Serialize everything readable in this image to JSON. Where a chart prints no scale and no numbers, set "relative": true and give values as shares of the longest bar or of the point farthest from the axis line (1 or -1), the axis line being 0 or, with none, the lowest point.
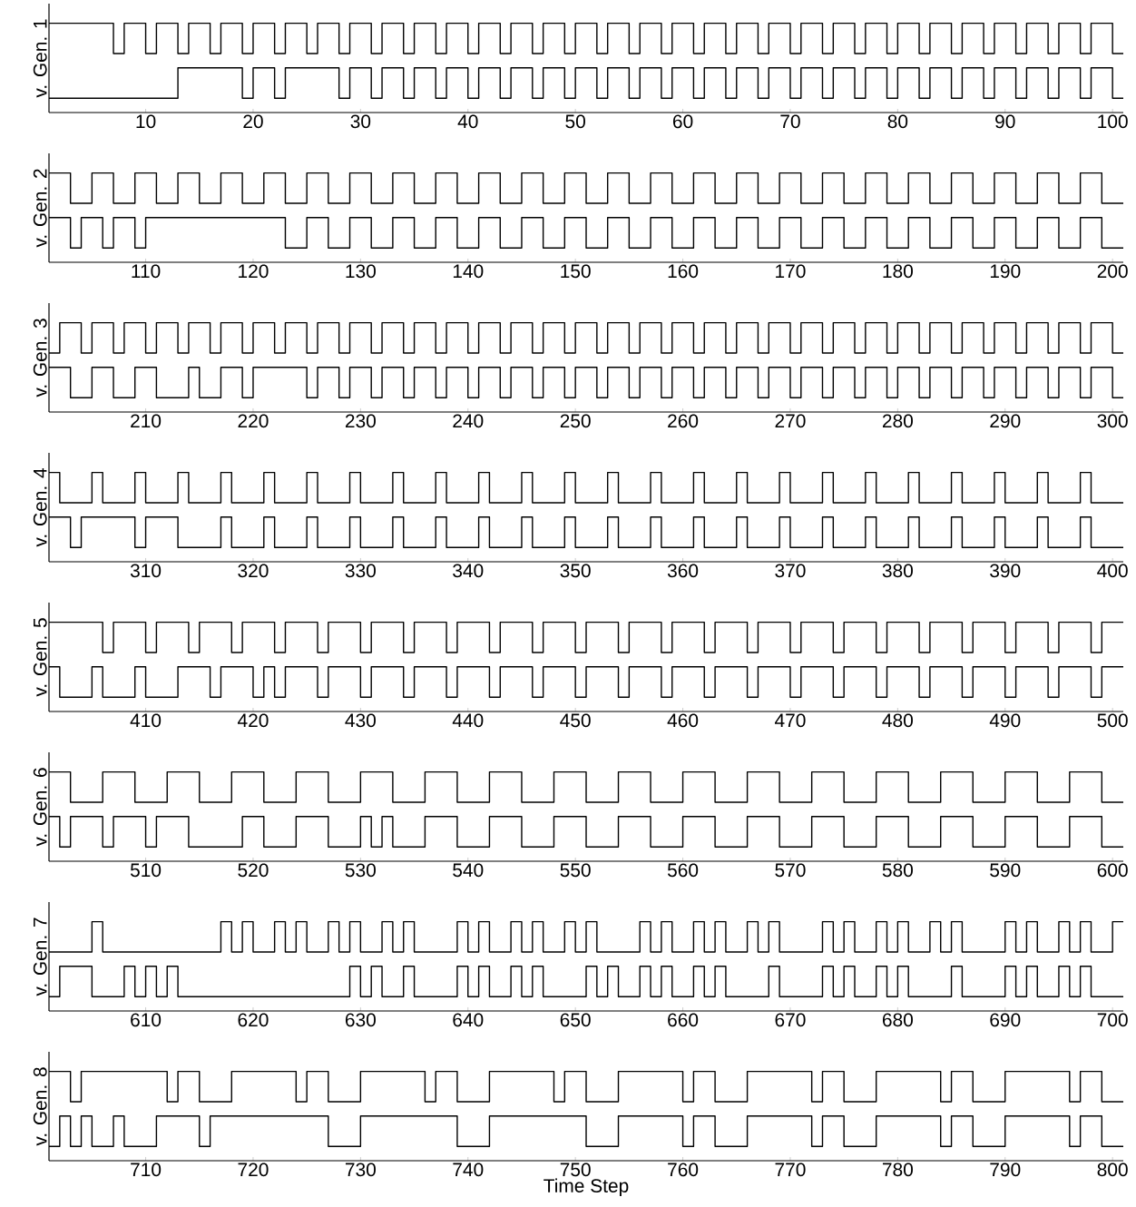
{
  "chart_data": [
    {
      "type": "step",
      "relative": true,
      "ylabel": "v. Gen. 1",
      "xlim": [
        1,
        101
      ],
      "xticks": [
        10,
        20,
        30,
        40,
        50,
        60,
        70,
        80,
        90,
        100
      ],
      "series": [
        {
          "color": "#000000",
          "x": [
            1,
            7,
            8,
            10,
            11,
            13,
            14,
            16,
            17,
            19,
            20,
            22,
            23,
            25,
            26,
            28,
            29,
            31,
            32,
            34,
            35,
            37,
            38,
            40,
            41,
            43,
            44,
            46,
            47,
            49,
            50,
            52,
            53,
            55,
            56,
            58,
            59,
            61,
            62,
            64,
            65,
            67,
            68,
            70,
            71,
            73,
            74,
            76,
            77,
            79,
            80,
            82,
            83,
            85,
            86,
            88,
            89,
            91,
            92,
            94,
            95,
            97,
            98,
            100,
            101
          ],
          "values": [
            1,
            0.66,
            1,
            0.66,
            1,
            0.66,
            1,
            0.66,
            1,
            0.66,
            1,
            0.66,
            1,
            0.66,
            1,
            0.66,
            1,
            0.66,
            1,
            0.66,
            1,
            0.66,
            1,
            0.66,
            1,
            0.66,
            1,
            0.66,
            1,
            0.66,
            1,
            0.66,
            1,
            0.66,
            1,
            0.66,
            1,
            0.66,
            1,
            0.66,
            1,
            0.66,
            1,
            0.66,
            1,
            0.66,
            1,
            0.66,
            1,
            0.66,
            1,
            0.66,
            1,
            0.66,
            1,
            0.66,
            1,
            0.66,
            1,
            0.66,
            1,
            0.66,
            1,
            0.66,
            0.66
          ]
        },
        {
          "color": "#000000",
          "x": [
            1,
            13,
            19,
            20,
            22,
            23,
            28,
            29,
            31,
            32,
            34,
            35,
            37,
            38,
            40,
            41,
            43,
            44,
            46,
            47,
            49,
            50,
            52,
            53,
            55,
            56,
            58,
            59,
            61,
            62,
            64,
            65,
            67,
            68,
            70,
            71,
            73,
            74,
            76,
            77,
            79,
            80,
            82,
            83,
            85,
            86,
            88,
            89,
            91,
            92,
            94,
            95,
            97,
            98,
            100,
            101
          ],
          "values": [
            0.16,
            0.5,
            0.16,
            0.5,
            0.16,
            0.5,
            0.16,
            0.5,
            0.16,
            0.5,
            0.16,
            0.5,
            0.16,
            0.5,
            0.16,
            0.5,
            0.16,
            0.5,
            0.16,
            0.5,
            0.16,
            0.5,
            0.16,
            0.5,
            0.16,
            0.5,
            0.16,
            0.5,
            0.16,
            0.5,
            0.16,
            0.5,
            0.16,
            0.5,
            0.16,
            0.5,
            0.16,
            0.5,
            0.16,
            0.5,
            0.16,
            0.5,
            0.16,
            0.5,
            0.16,
            0.5,
            0.16,
            0.5,
            0.16,
            0.5,
            0.16,
            0.5,
            0.16,
            0.5,
            0.16,
            0.16
          ]
        }
      ]
    },
    {
      "type": "step",
      "relative": true,
      "ylabel": "v. Gen. 2",
      "xlim": [
        101,
        201
      ],
      "xticks": [
        110,
        120,
        130,
        140,
        150,
        160,
        170,
        180,
        190,
        200
      ],
      "series": [
        {
          "color": "#000000",
          "x": [
            101,
            103,
            105,
            107,
            109,
            111,
            113,
            115,
            117,
            119,
            121,
            123,
            125,
            127,
            129,
            131,
            133,
            135,
            137,
            139,
            141,
            143,
            145,
            147,
            149,
            151,
            153,
            155,
            157,
            159,
            161,
            163,
            165,
            167,
            169,
            171,
            173,
            175,
            177,
            179,
            181,
            183,
            185,
            187,
            189,
            191,
            193,
            195,
            197,
            199,
            201
          ],
          "values": [
            1,
            0.66,
            1,
            0.66,
            1,
            0.66,
            1,
            0.66,
            1,
            0.66,
            1,
            0.66,
            1,
            0.66,
            1,
            0.66,
            1,
            0.66,
            1,
            0.66,
            1,
            0.66,
            1,
            0.66,
            1,
            0.66,
            1,
            0.66,
            1,
            0.66,
            1,
            0.66,
            1,
            0.66,
            1,
            0.66,
            1,
            0.66,
            1,
            0.66,
            1,
            0.66,
            1,
            0.66,
            1,
            0.66,
            1,
            0.66,
            1,
            0.66,
            0.66
          ]
        },
        {
          "color": "#000000",
          "x": [
            101,
            103,
            104,
            106,
            107,
            109,
            110,
            123,
            125,
            127,
            129,
            131,
            133,
            135,
            137,
            139,
            141,
            143,
            145,
            147,
            149,
            151,
            153,
            155,
            157,
            159,
            161,
            163,
            165,
            167,
            169,
            171,
            173,
            175,
            177,
            179,
            181,
            183,
            185,
            187,
            189,
            191,
            193,
            195,
            197,
            199,
            201
          ],
          "values": [
            0.5,
            0.16,
            0.5,
            0.16,
            0.5,
            0.16,
            0.5,
            0.16,
            0.5,
            0.16,
            0.5,
            0.16,
            0.5,
            0.16,
            0.5,
            0.16,
            0.5,
            0.16,
            0.5,
            0.16,
            0.5,
            0.16,
            0.5,
            0.16,
            0.5,
            0.16,
            0.5,
            0.16,
            0.5,
            0.16,
            0.5,
            0.16,
            0.5,
            0.16,
            0.5,
            0.16,
            0.5,
            0.16,
            0.5,
            0.16,
            0.5,
            0.16,
            0.5,
            0.16,
            0.5,
            0.16,
            0.16
          ]
        }
      ]
    },
    {
      "type": "step",
      "relative": true,
      "ylabel": "v. Gen. 3",
      "xlim": [
        201,
        301
      ],
      "xticks": [
        210,
        220,
        230,
        240,
        250,
        260,
        270,
        280,
        290,
        300
      ],
      "series": [
        {
          "color": "#000000",
          "x": [
            201,
            202,
            204,
            205,
            207,
            208,
            210,
            211,
            213,
            214,
            216,
            217,
            219,
            220,
            222,
            223,
            225,
            226,
            228,
            229,
            231,
            232,
            234,
            235,
            237,
            238,
            240,
            241,
            243,
            244,
            246,
            247,
            249,
            250,
            252,
            253,
            255,
            256,
            258,
            259,
            261,
            262,
            264,
            265,
            267,
            268,
            270,
            271,
            273,
            274,
            276,
            277,
            279,
            280,
            282,
            283,
            285,
            286,
            288,
            289,
            291,
            292,
            294,
            295,
            297,
            298,
            300,
            301
          ],
          "values": [
            0.66,
            1,
            0.66,
            1,
            0.66,
            1,
            0.66,
            1,
            0.66,
            1,
            0.66,
            1,
            0.66,
            1,
            0.66,
            1,
            0.66,
            1,
            0.66,
            1,
            0.66,
            1,
            0.66,
            1,
            0.66,
            1,
            0.66,
            1,
            0.66,
            1,
            0.66,
            1,
            0.66,
            1,
            0.66,
            1,
            0.66,
            1,
            0.66,
            1,
            0.66,
            1,
            0.66,
            1,
            0.66,
            1,
            0.66,
            1,
            0.66,
            1,
            0.66,
            1,
            0.66,
            1,
            0.66,
            1,
            0.66,
            1,
            0.66,
            1,
            0.66,
            1,
            0.66,
            1,
            0.66,
            1,
            0.66,
            0.66
          ]
        },
        {
          "color": "#000000",
          "x": [
            201,
            203,
            205,
            207,
            209,
            211,
            214,
            215,
            217,
            219,
            220,
            225,
            226,
            228,
            229,
            231,
            232,
            234,
            235,
            237,
            238,
            240,
            241,
            243,
            244,
            246,
            247,
            249,
            250,
            252,
            253,
            255,
            256,
            258,
            259,
            261,
            262,
            264,
            265,
            267,
            268,
            270,
            271,
            273,
            274,
            276,
            277,
            279,
            280,
            282,
            283,
            285,
            286,
            288,
            289,
            291,
            292,
            294,
            295,
            297,
            298,
            300,
            301
          ],
          "values": [
            0.5,
            0.16,
            0.5,
            0.16,
            0.5,
            0.16,
            0.5,
            0.16,
            0.5,
            0.16,
            0.5,
            0.16,
            0.5,
            0.16,
            0.5,
            0.16,
            0.5,
            0.16,
            0.5,
            0.16,
            0.5,
            0.16,
            0.5,
            0.16,
            0.5,
            0.16,
            0.5,
            0.16,
            0.5,
            0.16,
            0.5,
            0.16,
            0.5,
            0.16,
            0.5,
            0.16,
            0.5,
            0.16,
            0.5,
            0.16,
            0.5,
            0.16,
            0.5,
            0.16,
            0.5,
            0.16,
            0.5,
            0.16,
            0.5,
            0.16,
            0.5,
            0.16,
            0.5,
            0.16,
            0.5,
            0.16,
            0.5,
            0.16,
            0.5,
            0.16,
            0.5,
            0.16,
            0.16
          ]
        }
      ]
    },
    {
      "type": "step",
      "relative": true,
      "ylabel": "v. Gen. 4",
      "xlim": [
        301,
        401
      ],
      "xticks": [
        310,
        320,
        330,
        340,
        350,
        360,
        370,
        380,
        390,
        400
      ],
      "series": [
        {
          "color": "#000000",
          "x": [
            301,
            302,
            305,
            306,
            309,
            310,
            313,
            314,
            317,
            318,
            321,
            322,
            325,
            326,
            329,
            330,
            333,
            334,
            337,
            338,
            341,
            342,
            345,
            346,
            349,
            350,
            353,
            354,
            357,
            358,
            361,
            362,
            365,
            366,
            369,
            370,
            373,
            374,
            377,
            378,
            381,
            382,
            385,
            386,
            389,
            390,
            393,
            394,
            397,
            398,
            401
          ],
          "values": [
            1,
            0.66,
            1,
            0.66,
            1,
            0.66,
            1,
            0.66,
            1,
            0.66,
            1,
            0.66,
            1,
            0.66,
            1,
            0.66,
            1,
            0.66,
            1,
            0.66,
            1,
            0.66,
            1,
            0.66,
            1,
            0.66,
            1,
            0.66,
            1,
            0.66,
            1,
            0.66,
            1,
            0.66,
            1,
            0.66,
            1,
            0.66,
            1,
            0.66,
            1,
            0.66,
            1,
            0.66,
            1,
            0.66,
            1,
            0.66,
            1,
            0.66,
            0.66
          ]
        },
        {
          "color": "#000000",
          "x": [
            301,
            303,
            304,
            309,
            310,
            313,
            317,
            318,
            321,
            322,
            325,
            326,
            329,
            330,
            333,
            334,
            337,
            338,
            341,
            342,
            345,
            346,
            349,
            350,
            353,
            354,
            357,
            358,
            361,
            362,
            365,
            366,
            369,
            370,
            373,
            374,
            377,
            378,
            381,
            382,
            385,
            386,
            389,
            390,
            393,
            394,
            397,
            398,
            401
          ],
          "values": [
            0.5,
            0.16,
            0.5,
            0.16,
            0.5,
            0.16,
            0.5,
            0.16,
            0.5,
            0.16,
            0.5,
            0.16,
            0.5,
            0.16,
            0.5,
            0.16,
            0.5,
            0.16,
            0.5,
            0.16,
            0.5,
            0.16,
            0.5,
            0.16,
            0.5,
            0.16,
            0.5,
            0.16,
            0.5,
            0.16,
            0.5,
            0.16,
            0.5,
            0.16,
            0.5,
            0.16,
            0.5,
            0.16,
            0.5,
            0.16,
            0.5,
            0.16,
            0.5,
            0.16,
            0.5,
            0.16,
            0.5,
            0.16,
            0.16
          ]
        }
      ]
    },
    {
      "type": "step",
      "relative": true,
      "ylabel": "v. Gen. 5",
      "xlim": [
        401,
        501
      ],
      "xticks": [
        410,
        420,
        430,
        440,
        450,
        460,
        470,
        480,
        490,
        500
      ],
      "series": [
        {
          "color": "#000000",
          "x": [
            401,
            406,
            407,
            410,
            411,
            414,
            415,
            418,
            419,
            422,
            423,
            426,
            427,
            430,
            431,
            434,
            435,
            438,
            439,
            442,
            443,
            446,
            447,
            450,
            451,
            454,
            455,
            458,
            459,
            462,
            463,
            466,
            467,
            470,
            471,
            474,
            475,
            478,
            479,
            482,
            483,
            486,
            487,
            490,
            491,
            494,
            495,
            498,
            499,
            501
          ],
          "values": [
            1,
            0.66,
            1,
            0.66,
            1,
            0.66,
            1,
            0.66,
            1,
            0.66,
            1,
            0.66,
            1,
            0.66,
            1,
            0.66,
            1,
            0.66,
            1,
            0.66,
            1,
            0.66,
            1,
            0.66,
            1,
            0.66,
            1,
            0.66,
            1,
            0.66,
            1,
            0.66,
            1,
            0.66,
            1,
            0.66,
            1,
            0.66,
            1,
            0.66,
            1,
            0.66,
            1,
            0.66,
            1,
            0.66,
            1,
            0.66,
            1,
            1
          ]
        },
        {
          "color": "#000000",
          "x": [
            401,
            402,
            405,
            406,
            409,
            410,
            413,
            416,
            417,
            420,
            421,
            422,
            423,
            426,
            427,
            430,
            431,
            434,
            435,
            438,
            439,
            442,
            443,
            446,
            447,
            450,
            451,
            454,
            455,
            458,
            459,
            462,
            463,
            466,
            467,
            470,
            471,
            474,
            475,
            478,
            479,
            482,
            483,
            486,
            487,
            490,
            491,
            494,
            495,
            498,
            499,
            501
          ],
          "values": [
            0.5,
            0.16,
            0.5,
            0.16,
            0.5,
            0.16,
            0.5,
            0.16,
            0.5,
            0.16,
            0.5,
            0.16,
            0.5,
            0.16,
            0.5,
            0.16,
            0.5,
            0.16,
            0.5,
            0.16,
            0.5,
            0.16,
            0.5,
            0.16,
            0.5,
            0.16,
            0.5,
            0.16,
            0.5,
            0.16,
            0.5,
            0.16,
            0.5,
            0.16,
            0.5,
            0.16,
            0.5,
            0.16,
            0.5,
            0.16,
            0.5,
            0.16,
            0.5,
            0.16,
            0.5,
            0.16,
            0.5,
            0.16,
            0.5,
            0.16,
            0.5,
            0.5
          ]
        }
      ]
    },
    {
      "type": "step",
      "relative": true,
      "ylabel": "v. Gen. 6",
      "xlim": [
        501,
        601
      ],
      "xticks": [
        510,
        520,
        530,
        540,
        550,
        560,
        570,
        580,
        590,
        600
      ],
      "series": [
        {
          "color": "#000000",
          "x": [
            501,
            503,
            506,
            509,
            512,
            515,
            518,
            521,
            524,
            527,
            530,
            533,
            536,
            539,
            542,
            545,
            548,
            551,
            554,
            557,
            560,
            563,
            566,
            569,
            572,
            575,
            578,
            581,
            584,
            587,
            590,
            593,
            596,
            599,
            601
          ],
          "values": [
            1,
            0.66,
            1,
            0.66,
            1,
            0.66,
            1,
            0.66,
            1,
            0.66,
            1,
            0.66,
            1,
            0.66,
            1,
            0.66,
            1,
            0.66,
            1,
            0.66,
            1,
            0.66,
            1,
            0.66,
            1,
            0.66,
            1,
            0.66,
            1,
            0.66,
            1,
            0.66,
            1,
            0.66,
            0.66
          ]
        },
        {
          "color": "#000000",
          "x": [
            501,
            502,
            503,
            506,
            507,
            510,
            511,
            514,
            519,
            521,
            524,
            527,
            530,
            531,
            532,
            533,
            536,
            539,
            542,
            545,
            548,
            551,
            554,
            557,
            560,
            563,
            566,
            569,
            572,
            575,
            578,
            581,
            584,
            587,
            590,
            593,
            596,
            599,
            601
          ],
          "values": [
            0.5,
            0.16,
            0.5,
            0.16,
            0.5,
            0.16,
            0.5,
            0.16,
            0.5,
            0.16,
            0.5,
            0.16,
            0.5,
            0.16,
            0.5,
            0.16,
            0.5,
            0.16,
            0.5,
            0.16,
            0.5,
            0.16,
            0.5,
            0.16,
            0.5,
            0.16,
            0.5,
            0.16,
            0.5,
            0.16,
            0.5,
            0.16,
            0.5,
            0.16,
            0.5,
            0.16,
            0.5,
            0.16,
            0.16
          ]
        }
      ]
    },
    {
      "type": "step",
      "relative": true,
      "ylabel": "v. Gen. 7",
      "xlim": [
        601,
        701
      ],
      "xticks": [
        610,
        620,
        630,
        640,
        650,
        660,
        670,
        680,
        690,
        700
      ],
      "series": [
        {
          "color": "#000000",
          "x": [
            601,
            605,
            606,
            617,
            618,
            619,
            620,
            622,
            623,
            624,
            625,
            627,
            628,
            629,
            630,
            632,
            633,
            634,
            635,
            639,
            640,
            641,
            642,
            644,
            645,
            646,
            647,
            649,
            650,
            651,
            652,
            656,
            657,
            658,
            659,
            661,
            662,
            663,
            664,
            666,
            667,
            668,
            669,
            673,
            674,
            675,
            676,
            678,
            679,
            680,
            681,
            683,
            684,
            685,
            686,
            690,
            691,
            692,
            693,
            695,
            696,
            697,
            698,
            700,
            701
          ],
          "values": [
            0.66,
            1,
            0.66,
            1,
            0.66,
            1,
            0.66,
            1,
            0.66,
            1,
            0.66,
            1,
            0.66,
            1,
            0.66,
            1,
            0.66,
            1,
            0.66,
            1,
            0.66,
            1,
            0.66,
            1,
            0.66,
            1,
            0.66,
            1,
            0.66,
            1,
            0.66,
            1,
            0.66,
            1,
            0.66,
            1,
            0.66,
            1,
            0.66,
            1,
            0.66,
            1,
            0.66,
            1,
            0.66,
            1,
            0.66,
            1,
            0.66,
            1,
            0.66,
            1,
            0.66,
            1,
            0.66,
            1,
            0.66,
            1,
            0.66,
            1,
            0.66,
            1,
            0.66,
            1,
            1
          ]
        },
        {
          "color": "#000000",
          "x": [
            601,
            602,
            605,
            608,
            609,
            610,
            611,
            612,
            613,
            629,
            630,
            631,
            632,
            634,
            635,
            639,
            640,
            641,
            642,
            644,
            645,
            646,
            647,
            651,
            652,
            653,
            654,
            656,
            657,
            658,
            659,
            661,
            662,
            663,
            664,
            668,
            669,
            673,
            674,
            675,
            676,
            678,
            679,
            680,
            681,
            685,
            686,
            690,
            691,
            692,
            693,
            695,
            696,
            697,
            698,
            701
          ],
          "values": [
            0.16,
            0.5,
            0.16,
            0.5,
            0.16,
            0.5,
            0.16,
            0.5,
            0.16,
            0.5,
            0.16,
            0.5,
            0.16,
            0.5,
            0.16,
            0.5,
            0.16,
            0.5,
            0.16,
            0.5,
            0.16,
            0.5,
            0.16,
            0.5,
            0.16,
            0.5,
            0.16,
            0.5,
            0.16,
            0.5,
            0.16,
            0.5,
            0.16,
            0.5,
            0.16,
            0.5,
            0.16,
            0.5,
            0.16,
            0.5,
            0.16,
            0.5,
            0.16,
            0.5,
            0.16,
            0.5,
            0.16,
            0.5,
            0.16,
            0.5,
            0.16,
            0.5,
            0.16,
            0.5,
            0.16,
            0.16
          ]
        }
      ]
    },
    {
      "type": "step",
      "relative": true,
      "ylabel": "v. Gen. 8",
      "xlabel": "Time Step",
      "xlim": [
        701,
        801
      ],
      "xticks": [
        710,
        720,
        730,
        740,
        750,
        760,
        770,
        780,
        790,
        800
      ],
      "series": [
        {
          "color": "#000000",
          "x": [
            701,
            703,
            704,
            712,
            713,
            715,
            718,
            724,
            725,
            727,
            730,
            736,
            737,
            739,
            742,
            748,
            749,
            751,
            754,
            760,
            761,
            763,
            766,
            772,
            773,
            775,
            778,
            784,
            785,
            787,
            790,
            796,
            797,
            799,
            801
          ],
          "values": [
            1,
            0.66,
            1,
            0.66,
            1,
            0.66,
            1,
            0.66,
            1,
            0.66,
            1,
            0.66,
            1,
            0.66,
            1,
            0.66,
            1,
            0.66,
            1,
            0.66,
            1,
            0.66,
            1,
            0.66,
            1,
            0.66,
            1,
            0.66,
            1,
            0.66,
            1,
            0.66,
            1,
            0.66,
            0.66
          ]
        },
        {
          "color": "#000000",
          "x": [
            701,
            702,
            703,
            704,
            705,
            707,
            708,
            711,
            715,
            716,
            727,
            730,
            739,
            742,
            751,
            754,
            760,
            761,
            763,
            766,
            772,
            773,
            775,
            778,
            784,
            785,
            787,
            790,
            796,
            797,
            799,
            801
          ],
          "values": [
            0.16,
            0.5,
            0.16,
            0.5,
            0.16,
            0.5,
            0.16,
            0.5,
            0.16,
            0.5,
            0.16,
            0.5,
            0.16,
            0.5,
            0.16,
            0.5,
            0.16,
            0.5,
            0.16,
            0.5,
            0.16,
            0.5,
            0.16,
            0.5,
            0.16,
            0.5,
            0.16,
            0.5,
            0.16,
            0.5,
            0.16,
            0.16
          ]
        }
      ]
    }
  ]
}
